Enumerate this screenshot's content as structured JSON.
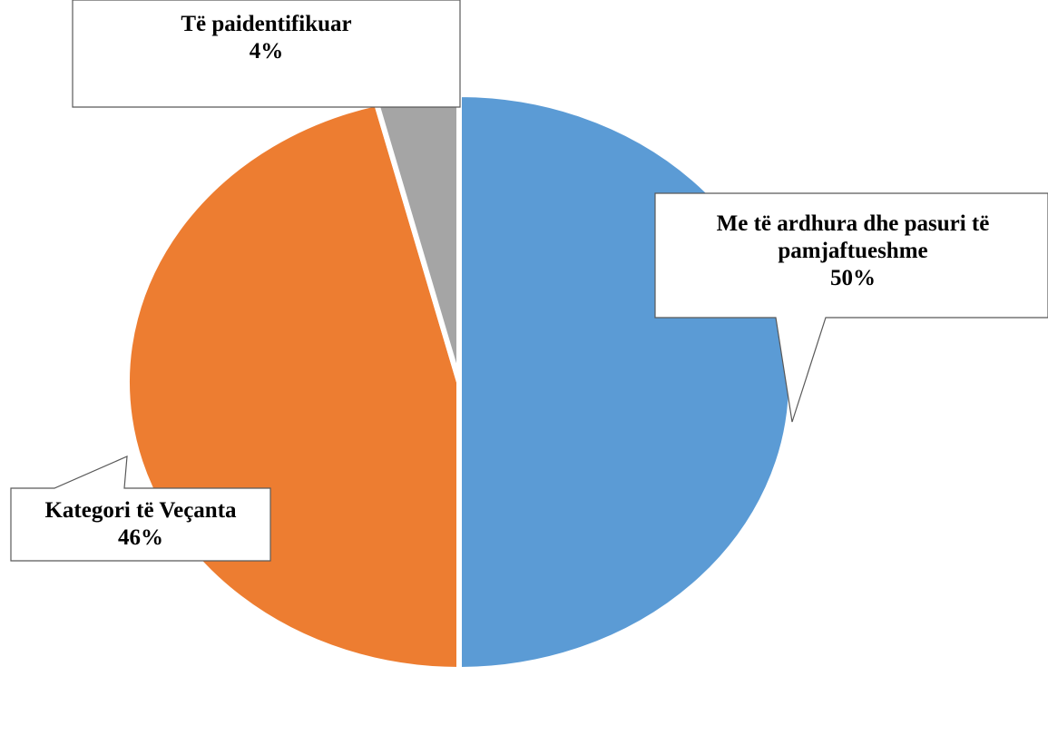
{
  "chart_data": {
    "type": "pie",
    "categories": [
      "Me të ardhura dhe pasuri të pamjaftueshme",
      "Kategori të Veçanta",
      "Të paidentifikuar"
    ],
    "values": [
      50,
      46,
      4
    ],
    "value_labels": [
      "50%",
      "46%",
      "4%"
    ],
    "colors": [
      "#5b9bd5",
      "#ed7d31",
      "#a5a5a5"
    ]
  }
}
